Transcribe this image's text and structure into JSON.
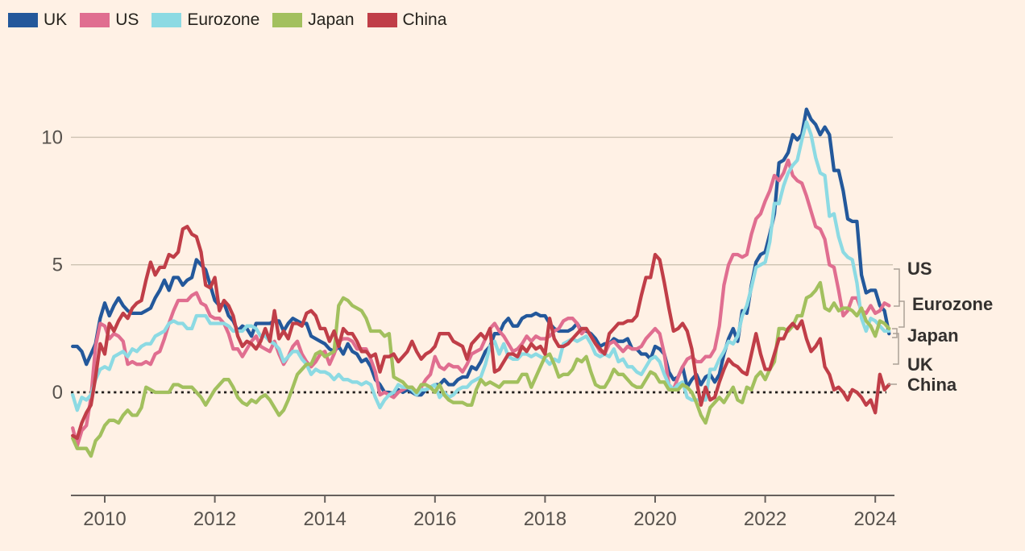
{
  "colors": {
    "background": "#FFF1E5",
    "text": "#33302E",
    "legend_text": "#26231D",
    "axis": "#66605C",
    "tick_label": "#57524D",
    "gridline": "#CDC2B2",
    "zero_line": "#221F1C",
    "bracket": "#ABA197"
  },
  "chart_data": {
    "type": "line",
    "title": "",
    "xlabel": "",
    "ylabel": "",
    "frequency": "monthly",
    "x_start": "2009-06",
    "x_end": "2024-04",
    "x_ticks": [
      2010,
      2012,
      2014,
      2016,
      2018,
      2020,
      2022,
      2024
    ],
    "y_ticks": [
      0,
      5,
      10
    ],
    "ylim": [
      -4,
      12.5
    ],
    "grid": "horizontal",
    "zero_line_style": "dotted",
    "legend_position": "top-left",
    "end_label_order": [
      "US",
      "Eurozone",
      "Japan",
      "UK",
      "China"
    ],
    "series": [
      {
        "name": "UK",
        "color": "#23589B",
        "values": [
          1.8,
          1.8,
          1.6,
          1.1,
          1.5,
          1.9,
          2.9,
          3.5,
          3.0,
          3.4,
          3.7,
          3.4,
          3.2,
          3.1,
          3.1,
          3.1,
          3.2,
          3.3,
          3.7,
          4.0,
          4.4,
          4.0,
          4.5,
          4.5,
          4.2,
          4.4,
          4.5,
          5.2,
          5.0,
          4.8,
          4.2,
          3.6,
          3.4,
          3.5,
          3.0,
          2.8,
          2.4,
          2.6,
          2.5,
          2.2,
          2.7,
          2.7,
          2.7,
          2.7,
          2.8,
          2.8,
          2.4,
          2.7,
          2.9,
          2.8,
          2.7,
          2.7,
          2.2,
          2.1,
          2.0,
          1.9,
          1.7,
          1.6,
          1.8,
          1.5,
          1.9,
          1.6,
          1.5,
          1.2,
          1.3,
          1.0,
          0.5,
          0.3,
          0.0,
          0.0,
          -0.1,
          0.1,
          0.0,
          0.1,
          0.0,
          -0.1,
          -0.1,
          0.1,
          0.2,
          0.3,
          0.3,
          0.5,
          0.3,
          0.3,
          0.5,
          0.6,
          0.6,
          1.0,
          0.9,
          1.2,
          1.6,
          1.8,
          2.3,
          2.3,
          2.7,
          2.9,
          2.6,
          2.6,
          2.9,
          3.0,
          3.0,
          3.1,
          3.0,
          3.0,
          2.7,
          2.5,
          2.4,
          2.4,
          2.4,
          2.5,
          2.7,
          2.4,
          2.4,
          2.3,
          2.1,
          1.8,
          1.9,
          1.9,
          2.1,
          2.0,
          2.0,
          2.1,
          1.7,
          1.7,
          1.5,
          1.5,
          1.3,
          1.8,
          1.7,
          1.5,
          0.8,
          0.5,
          0.6,
          1.0,
          0.2,
          0.5,
          0.7,
          0.3,
          0.6,
          0.7,
          0.4,
          0.7,
          1.5,
          2.1,
          2.5,
          2.0,
          3.2,
          3.1,
          4.2,
          5.1,
          5.4,
          5.5,
          6.2,
          7.0,
          9.0,
          9.1,
          9.4,
          10.1,
          9.9,
          10.1,
          11.1,
          10.7,
          10.5,
          10.1,
          10.4,
          10.1,
          8.7,
          8.7,
          7.9,
          6.8,
          6.7,
          6.7,
          4.6,
          3.9,
          4.0,
          4.0,
          3.4,
          3.2,
          2.3
        ]
      },
      {
        "name": "US",
        "color": "#E06E90",
        "values": [
          -1.4,
          -2.1,
          -1.5,
          -1.3,
          -0.2,
          1.8,
          2.7,
          2.6,
          2.1,
          2.3,
          2.2,
          2.0,
          1.1,
          1.2,
          1.1,
          1.1,
          1.2,
          1.1,
          1.5,
          1.6,
          2.1,
          2.7,
          3.2,
          3.6,
          3.6,
          3.6,
          3.8,
          3.9,
          3.5,
          3.4,
          3.0,
          2.9,
          2.9,
          2.7,
          2.3,
          1.7,
          1.7,
          1.4,
          1.7,
          2.0,
          2.2,
          1.8,
          1.7,
          1.6,
          2.0,
          1.5,
          1.1,
          1.4,
          1.8,
          2.0,
          1.5,
          1.2,
          1.0,
          1.2,
          1.5,
          1.6,
          1.1,
          1.5,
          2.0,
          2.1,
          2.1,
          2.0,
          1.7,
          1.7,
          1.7,
          1.3,
          0.8,
          -0.1,
          0.0,
          -0.1,
          -0.2,
          0.0,
          0.1,
          0.2,
          0.2,
          0.0,
          0.2,
          0.5,
          0.7,
          1.4,
          1.0,
          0.9,
          1.1,
          1.0,
          1.0,
          0.8,
          1.1,
          1.5,
          1.6,
          1.7,
          2.1,
          2.5,
          2.7,
          2.4,
          2.2,
          1.9,
          1.6,
          1.7,
          1.9,
          2.2,
          2.0,
          2.2,
          2.1,
          2.1,
          2.2,
          2.4,
          2.5,
          2.8,
          2.9,
          2.9,
          2.7,
          2.3,
          2.5,
          2.2,
          1.9,
          1.6,
          1.5,
          1.9,
          2.0,
          1.8,
          1.6,
          1.8,
          1.7,
          1.7,
          1.8,
          2.1,
          2.3,
          2.5,
          2.3,
          1.5,
          0.3,
          0.1,
          0.6,
          1.0,
          1.3,
          1.4,
          1.2,
          1.2,
          1.4,
          1.4,
          1.7,
          2.6,
          4.2,
          5.0,
          5.4,
          5.4,
          5.3,
          5.4,
          6.2,
          6.8,
          7.0,
          7.5,
          7.9,
          8.5,
          8.3,
          8.6,
          9.1,
          8.5,
          8.3,
          8.2,
          7.7,
          7.1,
          6.5,
          6.4,
          6.0,
          5.0,
          4.9,
          4.0,
          3.0,
          3.2,
          3.7,
          3.7,
          3.2,
          3.1,
          3.4,
          3.1,
          3.2,
          3.5,
          3.4
        ]
      },
      {
        "name": "Eurozone",
        "color": "#8CDAE3",
        "values": [
          -0.1,
          -0.7,
          -0.2,
          -0.3,
          -0.1,
          0.5,
          0.9,
          1.0,
          0.9,
          1.4,
          1.5,
          1.6,
          1.4,
          1.7,
          1.6,
          1.8,
          1.9,
          1.9,
          2.2,
          2.3,
          2.4,
          2.7,
          2.8,
          2.7,
          2.7,
          2.5,
          2.5,
          3.0,
          3.0,
          3.0,
          2.7,
          2.7,
          2.7,
          2.7,
          2.6,
          2.4,
          2.4,
          2.4,
          2.6,
          2.6,
          2.5,
          2.2,
          2.2,
          2.0,
          1.9,
          1.7,
          1.2,
          1.4,
          1.6,
          1.6,
          1.3,
          1.1,
          0.7,
          0.9,
          0.8,
          0.8,
          0.7,
          0.5,
          0.7,
          0.5,
          0.5,
          0.4,
          0.4,
          0.3,
          0.4,
          0.3,
          -0.2,
          -0.6,
          -0.3,
          -0.1,
          0.0,
          0.3,
          0.2,
          0.2,
          0.1,
          -0.1,
          0.1,
          0.1,
          0.2,
          0.3,
          -0.2,
          0.0,
          -0.2,
          -0.1,
          0.1,
          0.2,
          0.2,
          0.4,
          0.5,
          0.6,
          1.1,
          1.8,
          2.0,
          1.5,
          1.9,
          1.4,
          1.3,
          1.3,
          1.5,
          1.5,
          1.4,
          1.5,
          1.4,
          1.3,
          1.1,
          1.3,
          1.2,
          1.9,
          2.0,
          2.1,
          2.0,
          2.1,
          2.2,
          1.9,
          1.5,
          1.4,
          1.5,
          1.4,
          1.7,
          1.2,
          1.3,
          1.0,
          1.0,
          0.8,
          0.7,
          1.0,
          1.3,
          1.4,
          1.2,
          0.7,
          0.3,
          0.1,
          0.3,
          0.4,
          -0.2,
          -0.3,
          -0.3,
          -0.3,
          -0.3,
          0.9,
          0.9,
          1.3,
          1.6,
          2.0,
          1.9,
          2.2,
          3.0,
          3.4,
          4.1,
          4.9,
          5.0,
          5.1,
          5.9,
          7.4,
          7.4,
          8.1,
          8.6,
          8.9,
          9.1,
          9.9,
          10.6,
          10.1,
          9.2,
          8.6,
          8.5,
          6.9,
          7.0,
          6.1,
          5.5,
          5.3,
          5.2,
          4.3,
          2.9,
          2.4,
          2.9,
          2.8,
          2.6,
          2.4,
          2.4
        ]
      },
      {
        "name": "Japan",
        "color": "#A2C05E",
        "values": [
          -1.8,
          -2.2,
          -2.2,
          -2.2,
          -2.5,
          -1.9,
          -1.7,
          -1.3,
          -1.1,
          -1.1,
          -1.2,
          -0.9,
          -0.7,
          -0.9,
          -0.9,
          -0.6,
          0.2,
          0.1,
          0.0,
          0.0,
          0.0,
          0.0,
          0.3,
          0.3,
          0.2,
          0.2,
          0.2,
          0.0,
          -0.2,
          -0.5,
          -0.2,
          0.1,
          0.3,
          0.5,
          0.5,
          0.2,
          -0.2,
          -0.4,
          -0.5,
          -0.3,
          -0.4,
          -0.2,
          -0.1,
          -0.3,
          -0.6,
          -0.9,
          -0.7,
          -0.3,
          0.2,
          0.7,
          0.9,
          1.1,
          1.1,
          1.5,
          1.6,
          1.4,
          1.5,
          1.6,
          3.4,
          3.7,
          3.6,
          3.4,
          3.3,
          3.2,
          2.9,
          2.4,
          2.4,
          2.4,
          2.2,
          2.3,
          0.6,
          0.5,
          0.4,
          0.2,
          0.2,
          0.0,
          0.3,
          0.3,
          0.2,
          0.0,
          0.3,
          -0.1,
          -0.3,
          -0.4,
          -0.4,
          -0.4,
          -0.5,
          -0.5,
          0.1,
          0.5,
          0.3,
          0.4,
          0.3,
          0.2,
          0.4,
          0.4,
          0.4,
          0.4,
          0.7,
          0.7,
          0.2,
          0.6,
          1.0,
          1.4,
          1.5,
          1.1,
          0.6,
          0.7,
          0.7,
          0.9,
          1.3,
          1.2,
          1.4,
          0.8,
          0.3,
          0.2,
          0.2,
          0.5,
          0.9,
          0.7,
          0.7,
          0.5,
          0.3,
          0.2,
          0.2,
          0.5,
          0.8,
          0.7,
          0.4,
          0.4,
          0.1,
          0.1,
          0.1,
          0.3,
          0.2,
          0.0,
          -0.4,
          -0.9,
          -1.2,
          -0.6,
          -0.4,
          -0.2,
          -0.4,
          -0.1,
          0.2,
          -0.3,
          -0.4,
          0.2,
          0.1,
          0.6,
          0.8,
          0.5,
          0.9,
          1.2,
          2.5,
          2.5,
          2.4,
          2.6,
          3.0,
          3.0,
          3.7,
          3.8,
          4.0,
          4.3,
          3.3,
          3.2,
          3.5,
          3.2,
          3.3,
          3.3,
          3.2,
          3.0,
          3.3,
          2.8,
          2.6,
          2.2,
          2.8,
          2.7,
          2.5
        ]
      },
      {
        "name": "China",
        "color": "#C03E48",
        "values": [
          -1.7,
          -1.8,
          -1.2,
          -0.8,
          -0.5,
          0.6,
          1.9,
          1.5,
          2.7,
          2.4,
          2.8,
          3.1,
          2.9,
          3.3,
          3.5,
          3.6,
          4.4,
          5.1,
          4.6,
          4.9,
          4.9,
          5.4,
          5.3,
          5.5,
          6.4,
          6.5,
          6.2,
          6.1,
          5.5,
          4.2,
          4.1,
          4.5,
          3.2,
          3.6,
          3.4,
          3.0,
          2.2,
          1.8,
          2.0,
          1.9,
          1.7,
          2.0,
          2.5,
          2.0,
          3.2,
          2.1,
          2.4,
          2.1,
          2.7,
          2.7,
          2.6,
          3.1,
          3.2,
          3.0,
          2.5,
          2.5,
          2.0,
          2.4,
          1.8,
          2.5,
          2.3,
          2.3,
          2.0,
          1.6,
          1.6,
          1.4,
          1.5,
          0.8,
          1.4,
          1.4,
          1.5,
          1.2,
          1.4,
          1.6,
          2.0,
          1.6,
          1.3,
          1.5,
          1.6,
          1.8,
          2.3,
          2.3,
          2.3,
          2.0,
          1.9,
          1.8,
          1.3,
          1.9,
          2.1,
          2.3,
          2.1,
          2.5,
          0.8,
          0.9,
          1.2,
          1.5,
          1.5,
          1.4,
          1.8,
          1.6,
          1.9,
          1.7,
          1.8,
          1.5,
          2.9,
          2.1,
          1.8,
          1.8,
          1.9,
          2.1,
          2.3,
          2.5,
          2.5,
          2.2,
          1.9,
          1.7,
          1.5,
          2.3,
          2.5,
          2.7,
          2.7,
          2.8,
          2.8,
          3.0,
          3.8,
          4.5,
          4.5,
          5.4,
          5.2,
          4.3,
          3.3,
          2.4,
          2.5,
          2.7,
          2.4,
          1.7,
          0.5,
          -0.5,
          0.2,
          -0.3,
          -0.2,
          0.4,
          0.9,
          1.3,
          1.1,
          1.0,
          0.8,
          0.7,
          1.5,
          2.3,
          1.5,
          0.9,
          0.9,
          1.5,
          2.1,
          2.1,
          2.5,
          2.7,
          2.5,
          2.8,
          2.1,
          1.6,
          1.8,
          2.1,
          1.0,
          0.7,
          0.1,
          0.2,
          0.0,
          -0.3,
          0.1,
          0.0,
          -0.2,
          -0.5,
          -0.3,
          -0.8,
          0.7,
          0.1,
          0.3
        ]
      }
    ]
  }
}
